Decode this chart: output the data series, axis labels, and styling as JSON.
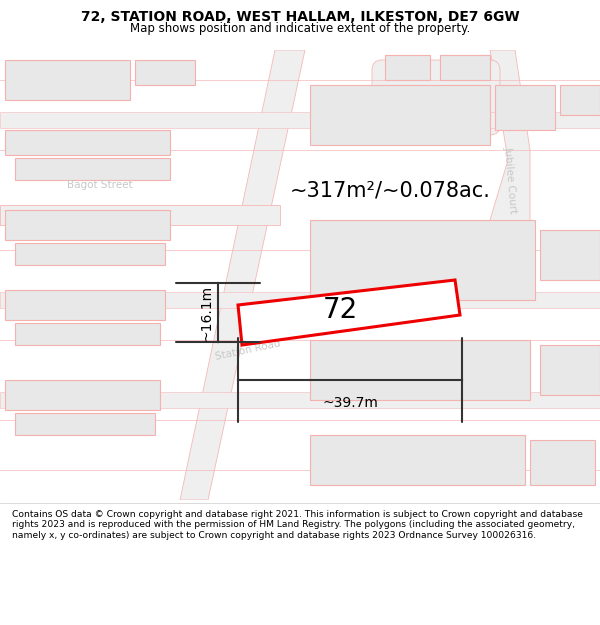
{
  "title_line1": "72, STATION ROAD, WEST HALLAM, ILKESTON, DE7 6GW",
  "title_line2": "Map shows position and indicative extent of the property.",
  "footer_text": "Contains OS data © Crown copyright and database right 2021. This information is subject to Crown copyright and database rights 2023 and is reproduced with the permission of HM Land Registry. The polygons (including the associated geometry, namely x, y co-ordinates) are subject to Crown copyright and database rights 2023 Ordnance Survey 100026316.",
  "area_text": "~317m²/~0.078ac.",
  "number_label": "72",
  "dim_width": "~39.7m",
  "dim_height": "~16.1m",
  "map_bg": "#f8f7f7",
  "road_fill": "#efefef",
  "road_stroke": "#f5b8b8",
  "block_fill": "#e8e8e8",
  "block_stroke": "#f5b0b0",
  "highlight_fill": "#ffffff",
  "highlight_stroke": "#ee0000",
  "label_color": "#c8c8c8",
  "dim_color": "#333333"
}
